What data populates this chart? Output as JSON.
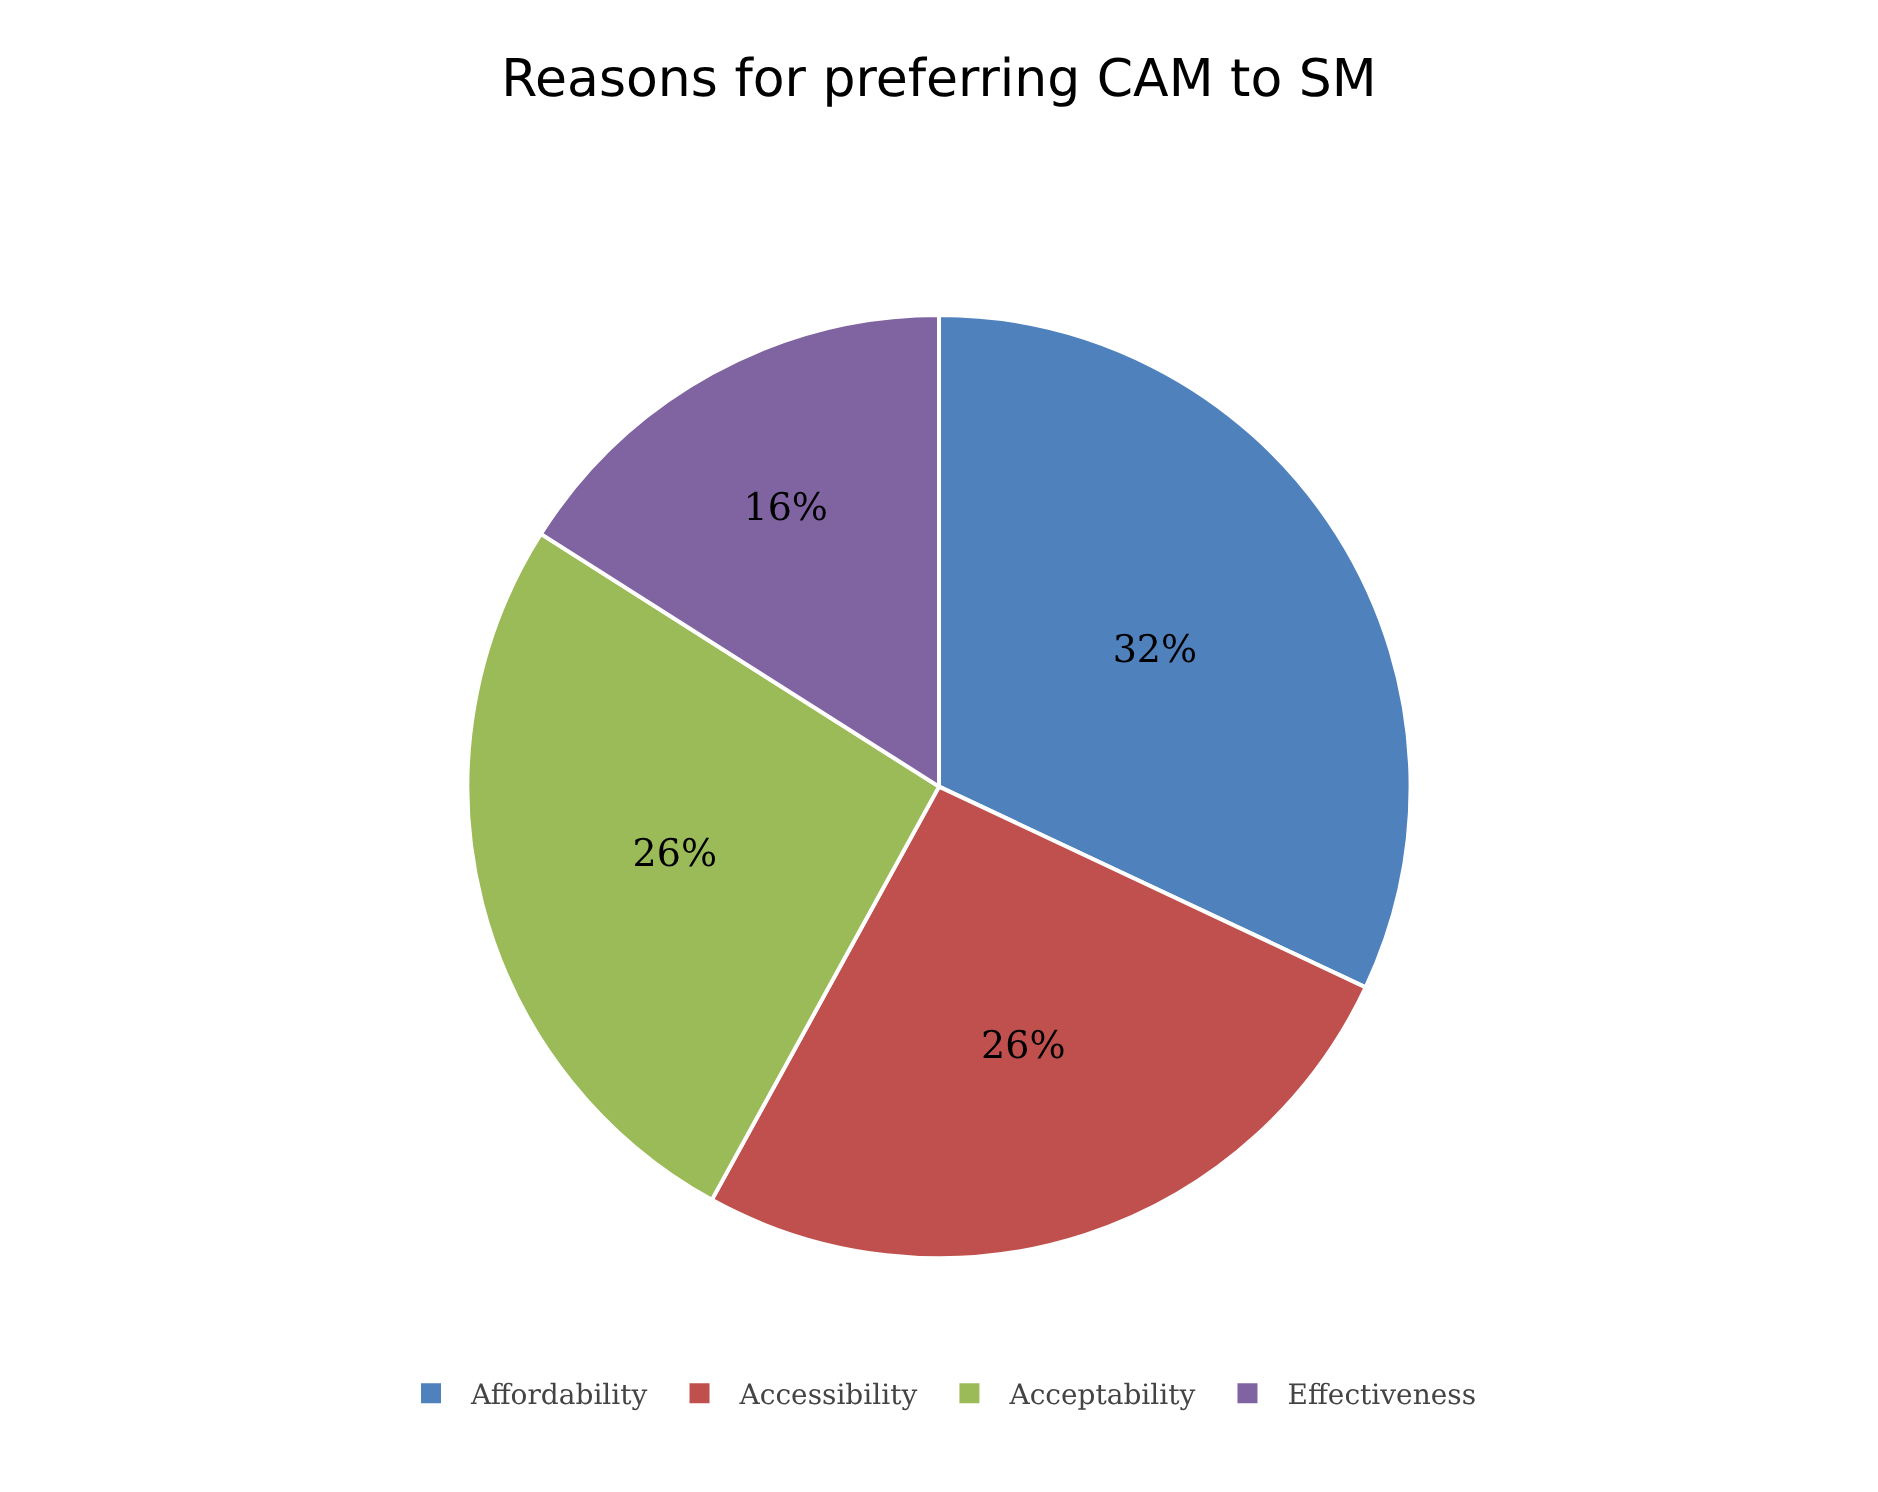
{
  "chart_data": {
    "type": "pie",
    "title": "Reasons for preferring CAM to SM",
    "categories": [
      "Affordability",
      "Accessibility",
      "Acceptability",
      "Effectiveness"
    ],
    "values": [
      32,
      26,
      26,
      16
    ],
    "value_labels": [
      "32%",
      "26%",
      "26%",
      "16%"
    ],
    "colors": [
      "#4f81bd",
      "#c0504d",
      "#9bbb59",
      "#8064a2"
    ],
    "legend": "bottom"
  }
}
